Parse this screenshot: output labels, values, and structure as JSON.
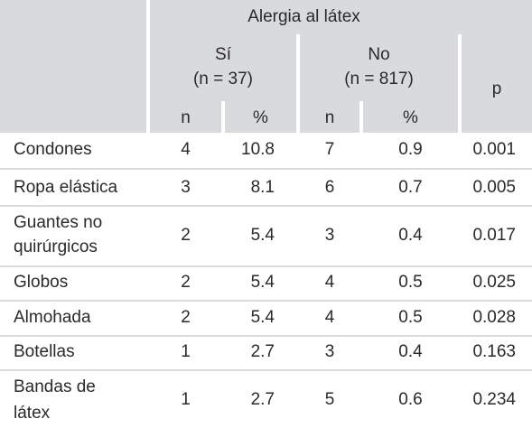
{
  "header": {
    "group_label": "Alergia al látex",
    "si_label": "Sí",
    "si_count": "(n = 37)",
    "no_label": "No",
    "no_count": "(n = 817)",
    "p_label": "p",
    "n_label": "n",
    "pct_label": "%"
  },
  "rows": [
    {
      "item": [
        "Condones"
      ],
      "si_n": "4",
      "si_pct": "10.8",
      "no_n": "7",
      "no_pct": "0.9",
      "p": "0.001"
    },
    {
      "item": [
        "Ropa elástica"
      ],
      "si_n": "3",
      "si_pct": "8.1",
      "no_n": "6",
      "no_pct": "0.7",
      "p": "0.005"
    },
    {
      "item": [
        "Guantes no",
        "quirúrgicos"
      ],
      "si_n": "2",
      "si_pct": "5.4",
      "no_n": "3",
      "no_pct": "0.4",
      "p": "0.017"
    },
    {
      "item": [
        "Globos"
      ],
      "si_n": "2",
      "si_pct": "5.4",
      "no_n": "4",
      "no_pct": "0.5",
      "p": "0.025"
    },
    {
      "item": [
        "Almohada"
      ],
      "si_n": "2",
      "si_pct": "5.4",
      "no_n": "4",
      "no_pct": "0.5",
      "p": "0.028"
    },
    {
      "item": [
        "Botellas"
      ],
      "si_n": "1",
      "si_pct": "2.7",
      "no_n": "3",
      "no_pct": "0.4",
      "p": "0.163"
    },
    {
      "item": [
        "Bandas de",
        "látex"
      ],
      "si_n": "1",
      "si_pct": "2.7",
      "no_n": "5",
      "no_pct": "0.6",
      "p": "0.234"
    }
  ]
}
